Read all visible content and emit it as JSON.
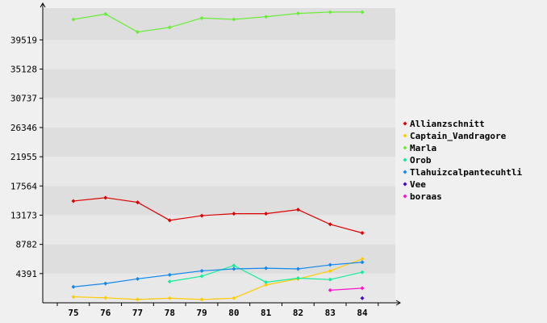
{
  "chart_data": {
    "type": "line",
    "title": "",
    "xlabel": "",
    "ylabel": "",
    "categories": [
      "75",
      "76",
      "77",
      "78",
      "79",
      "80",
      "81",
      "82",
      "83",
      "84"
    ],
    "y_ticks": [
      4391,
      8782,
      13173,
      17564,
      21955,
      26346,
      30737,
      35128,
      39519
    ],
    "ylim": [
      0,
      44300
    ],
    "grid": "alternating horizontal bands",
    "legend_position": "right",
    "series": [
      {
        "name": "Allianzschnitt",
        "color": "#dd0000",
        "values": [
          15300,
          15800,
          15100,
          12400,
          13100,
          13400,
          13400,
          14000,
          11800,
          10500
        ]
      },
      {
        "name": "Captain_Vandragore",
        "color": "#ffcc00",
        "values": [
          900,
          750,
          500,
          700,
          500,
          700,
          2700,
          3600,
          4800,
          6600
        ]
      },
      {
        "name": "Marla",
        "color": "#66ee33",
        "values": [
          42600,
          43400,
          40700,
          41400,
          42800,
          42600,
          43000,
          43500,
          43700,
          43700
        ]
      },
      {
        "name": "Orob",
        "color": "#11ee99",
        "values": [
          null,
          null,
          null,
          3200,
          4000,
          5600,
          3100,
          3700,
          3500,
          4600
        ]
      },
      {
        "name": "Tlahuizcalpantecuhtli",
        "color": "#1188ee",
        "values": [
          2400,
          2900,
          3600,
          4200,
          4800,
          5100,
          5200,
          5100,
          5700,
          6100
        ]
      },
      {
        "name": "Vee",
        "color": "#4400dd",
        "values": [
          null,
          null,
          null,
          null,
          null,
          null,
          null,
          null,
          null,
          700
        ]
      },
      {
        "name": "boraas",
        "color": "#ff11cc",
        "values": [
          null,
          null,
          null,
          null,
          null,
          null,
          null,
          null,
          1900,
          2200
        ]
      }
    ]
  }
}
